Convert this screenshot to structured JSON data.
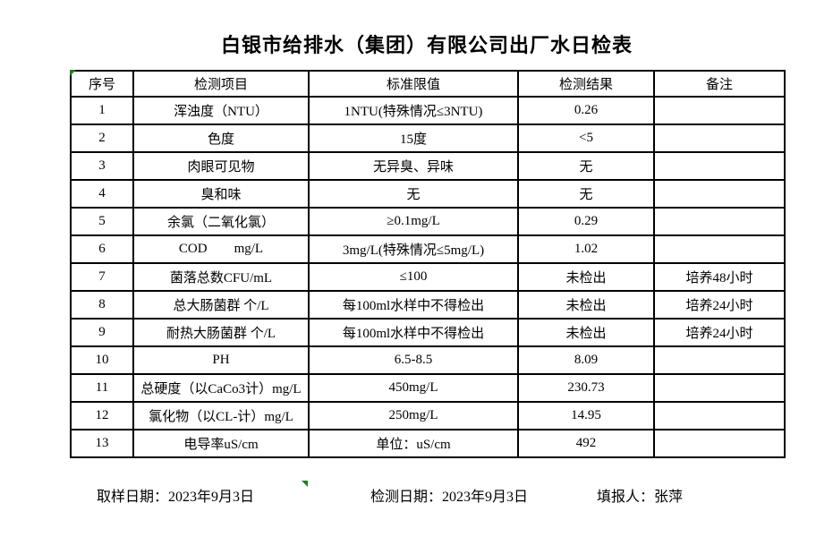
{
  "title": "白银市给排水（集团）有限公司出厂水日检表",
  "table": {
    "headers": [
      "序号",
      "检测项目",
      "标准限值",
      "检测结果",
      "备注"
    ],
    "rows": [
      {
        "no": "1",
        "item": "浑浊度（NTU）",
        "limit": "1NTU(特殊情况≤3NTU)",
        "result": "0.26",
        "remark": ""
      },
      {
        "no": "2",
        "item": "色度",
        "limit": "15度",
        "result": "<5",
        "remark": ""
      },
      {
        "no": "3",
        "item": "肉眼可见物",
        "limit": "无异臭、异味",
        "result": "无",
        "remark": ""
      },
      {
        "no": "4",
        "item": "臭和味",
        "limit": "无",
        "result": "无",
        "remark": ""
      },
      {
        "no": "5",
        "item": "余氯（二氧化氯）",
        "limit": "≥0.1mg/L",
        "result": "0.29",
        "remark": ""
      },
      {
        "no": "6",
        "item": "COD        mg/L",
        "limit": "3mg/L(特殊情况≤5mg/L)",
        "result": "1.02",
        "remark": ""
      },
      {
        "no": "7",
        "item": "菌落总数CFU/mL",
        "limit": "≤100",
        "result": "未检出",
        "remark": "培养48小时"
      },
      {
        "no": "8",
        "item": "总大肠菌群 个/L",
        "limit": "每100ml水样中不得检出",
        "result": "未检出",
        "remark": "培养24小时"
      },
      {
        "no": "9",
        "item": "耐热大肠菌群 个/L",
        "limit": "每100ml水样中不得检出",
        "result": "未检出",
        "remark": "培养24小时"
      },
      {
        "no": "10",
        "item": "PH",
        "limit": "6.5-8.5",
        "result": "8.09",
        "remark": ""
      },
      {
        "no": "11",
        "item": "总硬度（以CaCo3计）mg/L",
        "limit": "450mg/L",
        "result": "230.73",
        "remark": ""
      },
      {
        "no": "12",
        "item": "氯化物（以CL-计）mg/L",
        "limit": "250mg/L",
        "result": "14.95",
        "remark": ""
      },
      {
        "no": "13",
        "item": "电导率uS/cm",
        "limit": "单位：uS/cm",
        "result": "492",
        "remark": ""
      }
    ]
  },
  "footer": {
    "sample_date": "取样日期：2023年9月3日",
    "test_date": "检测日期：2023年9月3日",
    "reporter": "填报人：张萍"
  },
  "colors": {
    "marker_green": "#1e7e1e",
    "border": "#000000",
    "background": "#ffffff"
  }
}
